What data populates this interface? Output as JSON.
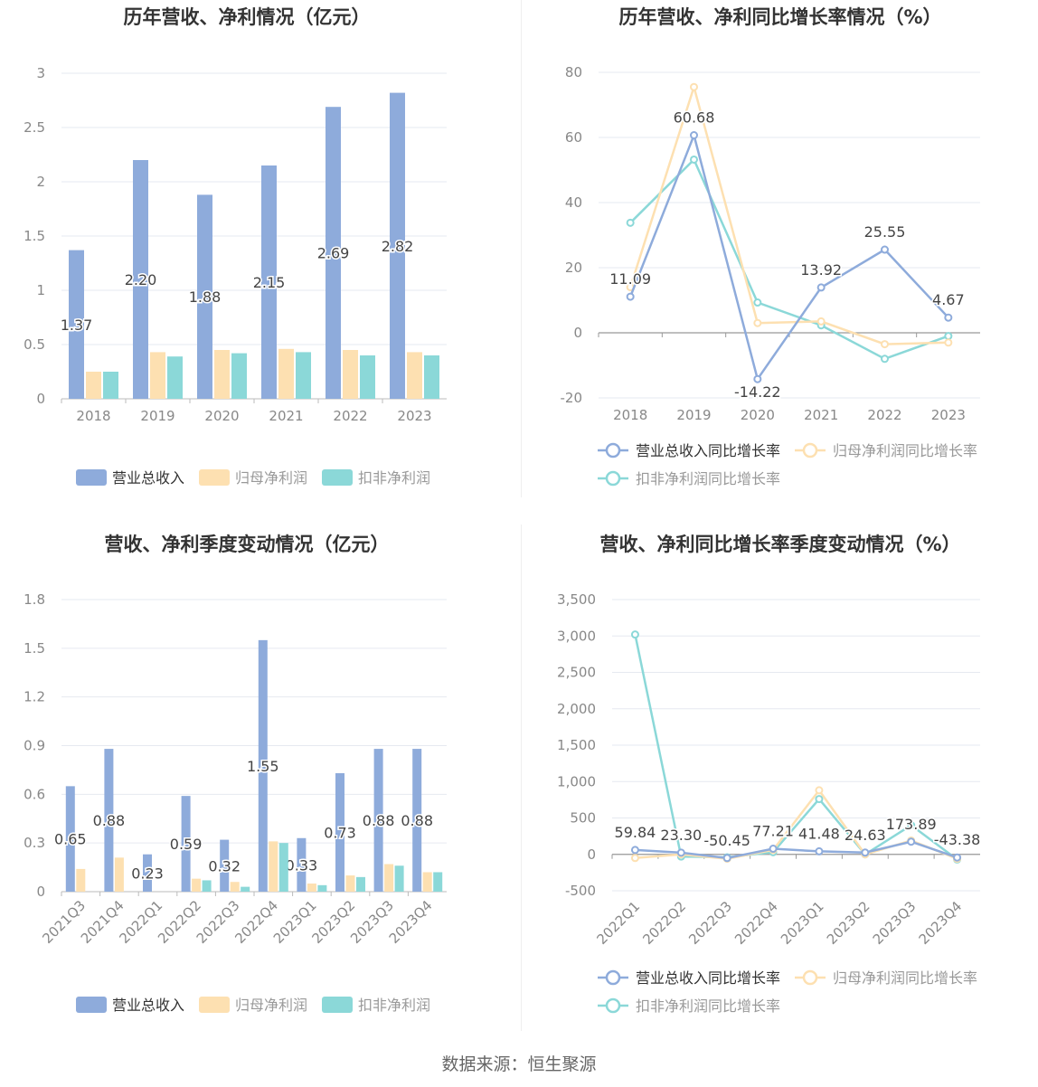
{
  "source": "数据来源：恒生聚源",
  "colors": {
    "revenue": "#8eabdb",
    "net": "#fde0b1",
    "deducted": "#8bd8d8",
    "axis": "#888888",
    "grid": "#e6e9f0",
    "label": "#444444"
  },
  "chart_data": [
    {
      "type": "bar",
      "title": "历年营收、净利情况（亿元）",
      "categories": [
        "2018",
        "2019",
        "2020",
        "2021",
        "2022",
        "2023"
      ],
      "yticks": [
        "0",
        "0.5",
        "1",
        "1.5",
        "2",
        "2.5",
        "3"
      ],
      "ylim": [
        0,
        3
      ],
      "series": [
        {
          "name": "营业总收入",
          "values": [
            1.37,
            2.2,
            1.88,
            2.15,
            2.69,
            2.82
          ],
          "labels": [
            "1.37",
            "2.20",
            "1.88",
            "2.15",
            "2.69",
            "2.82"
          ]
        },
        {
          "name": "归母净利润",
          "values": [
            0.25,
            0.43,
            0.45,
            0.46,
            0.45,
            0.43
          ]
        },
        {
          "name": "扣非净利润",
          "values": [
            0.25,
            0.39,
            0.42,
            0.43,
            0.4,
            0.4
          ]
        }
      ],
      "legend": "bottom"
    },
    {
      "type": "line",
      "title": "历年营收、净利同比增长率情况（%）",
      "categories": [
        "2018",
        "2019",
        "2020",
        "2021",
        "2022",
        "2023"
      ],
      "yticks": [
        "-20",
        "0",
        "20",
        "40",
        "60",
        "80"
      ],
      "ylim": [
        -20,
        80
      ],
      "series": [
        {
          "name": "营业总收入同比增长率",
          "values": [
            11.09,
            60.68,
            -14.22,
            13.92,
            25.55,
            4.67
          ],
          "labels": [
            "11.09",
            "60.68",
            "-14.22",
            "13.92",
            "25.55",
            "4.67"
          ]
        },
        {
          "name": "归母净利润同比增长率",
          "values": [
            14,
            75.5,
            3,
            3.5,
            -3.5,
            -3
          ]
        },
        {
          "name": "扣非净利润同比增长率",
          "values": [
            33.8,
            53.2,
            9.3,
            2.3,
            -8,
            -1
          ]
        }
      ],
      "legend": "bottom"
    },
    {
      "type": "bar",
      "title": "营收、净利季度变动情况（亿元）",
      "categories": [
        "2021Q3",
        "2021Q4",
        "2022Q1",
        "2022Q2",
        "2022Q3",
        "2022Q4",
        "2023Q1",
        "2023Q2",
        "2023Q3",
        "2023Q4"
      ],
      "yticks": [
        "0",
        "0.3",
        "0.6",
        "0.9",
        "1.2",
        "1.5",
        "1.8"
      ],
      "ylim": [
        0,
        1.8
      ],
      "series": [
        {
          "name": "营业总收入",
          "values": [
            0.65,
            0.88,
            0.23,
            0.59,
            0.32,
            1.55,
            0.33,
            0.73,
            0.88,
            0.88
          ],
          "labels": [
            "0.65",
            "0.88",
            "0.23",
            "0.59",
            "0.32",
            "1.55",
            "0.33",
            "0.73",
            "0.88",
            "0.88"
          ]
        },
        {
          "name": "归母净利润",
          "values": [
            0.14,
            0.21,
            0,
            0.08,
            0.06,
            0.31,
            0.05,
            0.1,
            0.17,
            0.12
          ]
        },
        {
          "name": "扣非净利润",
          "values": [
            0,
            0,
            0,
            0.07,
            0.03,
            0.3,
            0.04,
            0.09,
            0.16,
            0.12
          ]
        }
      ],
      "legend": "bottom"
    },
    {
      "type": "line",
      "title": "营收、净利同比增长率季度变动情况（%）",
      "categories": [
        "2022Q1",
        "2022Q2",
        "2022Q3",
        "2022Q4",
        "2023Q1",
        "2023Q2",
        "2023Q3",
        "2023Q4"
      ],
      "yticks": [
        "-500",
        "0",
        "500",
        "1,000",
        "1,500",
        "2,000",
        "2,500",
        "3,000",
        "3,500"
      ],
      "ylim": [
        -500,
        3500
      ],
      "series": [
        {
          "name": "营业总收入同比增长率",
          "values": [
            59.84,
            23.3,
            -50.45,
            77.21,
            41.48,
            24.63,
            173.89,
            -43.38
          ],
          "labels": [
            "59.84",
            "23.30",
            "-50.45",
            "77.21",
            "41.48",
            "24.63",
            "173.89",
            "-43.38"
          ]
        },
        {
          "name": "归母净利润同比增长率",
          "values": [
            -50,
            0,
            -60,
            60,
            880,
            0,
            190,
            -60
          ]
        },
        {
          "name": "扣非净利润同比增长率",
          "values": [
            3020,
            -30,
            -40,
            30,
            760,
            0,
            400,
            -70
          ]
        }
      ],
      "legend": "bottom"
    }
  ]
}
